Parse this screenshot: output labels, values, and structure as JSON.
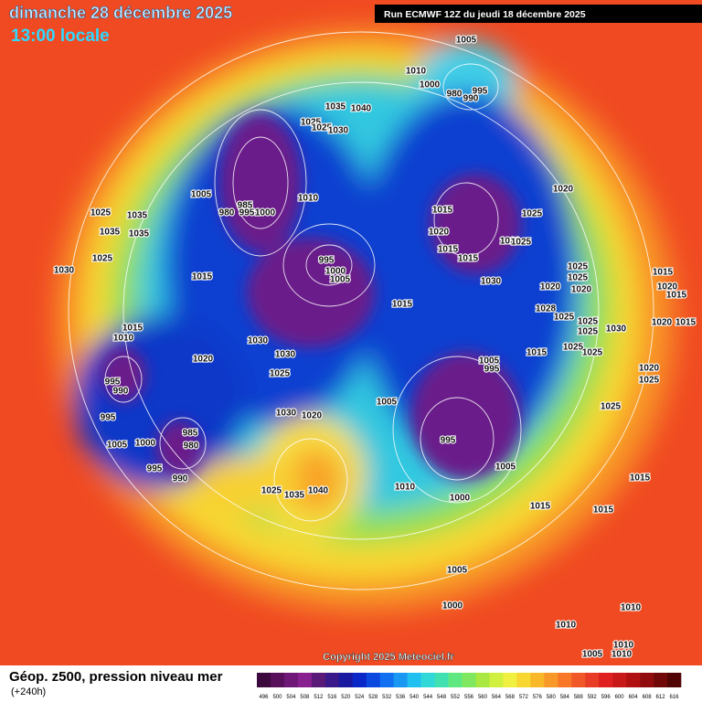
{
  "header": {
    "title": "dimanche 28 décembre 2025",
    "time": "13:00 locale",
    "run": "Run ECMWF 12Z du jeudi 18 décembre 2025"
  },
  "copyright": "Copyright 2025 Meteociel.fr",
  "footer": {
    "title": "Géop. z500, pression niveau mer",
    "lead": "(+240h)"
  },
  "scale": {
    "labels": [
      496,
      500,
      504,
      508,
      512,
      516,
      520,
      524,
      528,
      532,
      536,
      540,
      544,
      548,
      552,
      556,
      560,
      564,
      568,
      572,
      576,
      580,
      584,
      588,
      592,
      596,
      600,
      604,
      608,
      612,
      616
    ],
    "colors": [
      "#3c0a3c",
      "#58105a",
      "#701878",
      "#882090",
      "#5a1a78",
      "#3a1a8a",
      "#1a1aa0",
      "#0a28c8",
      "#0a48e0",
      "#1070f0",
      "#1898f0",
      "#20c0f0",
      "#30d8d8",
      "#40e0b0",
      "#60e880",
      "#80e860",
      "#a8e840",
      "#d0f040",
      "#f0f040",
      "#f8d830",
      "#f8b828",
      "#f89828",
      "#f87828",
      "#f05828",
      "#e83c24",
      "#e02020",
      "#c81818",
      "#b01010",
      "#900c0c",
      "#700808",
      "#500404"
    ]
  },
  "isobar_labels": [
    1005,
    1010,
    1000,
    980,
    995,
    990,
    1035,
    1040,
    1025,
    1025,
    1030,
    1005,
    985,
    980,
    995,
    1000,
    1010,
    1025,
    1035,
    1035,
    1035,
    1030,
    1025,
    1015,
    995,
    1000,
    1005,
    1015,
    1020,
    1015,
    1015,
    1025,
    1020,
    1025,
    1020,
    1030,
    1015,
    1020,
    1025,
    1025,
    1020,
    1015,
    1020,
    1015,
    1028,
    1025,
    1025,
    1025,
    1030,
    1020,
    1015,
    1015,
    1010,
    1030,
    1030,
    1020,
    1025,
    1015,
    1025,
    1025,
    1005,
    995,
    995,
    990,
    1005,
    1020,
    1025,
    1025,
    995,
    1030,
    1020,
    985,
    980,
    1005,
    1000,
    995,
    995,
    990,
    1005,
    1015,
    1010,
    1025,
    1035,
    1040,
    1000,
    1015,
    1015,
    1005,
    1000,
    1010,
    1010,
    1010,
    1005,
    1010
  ]
}
